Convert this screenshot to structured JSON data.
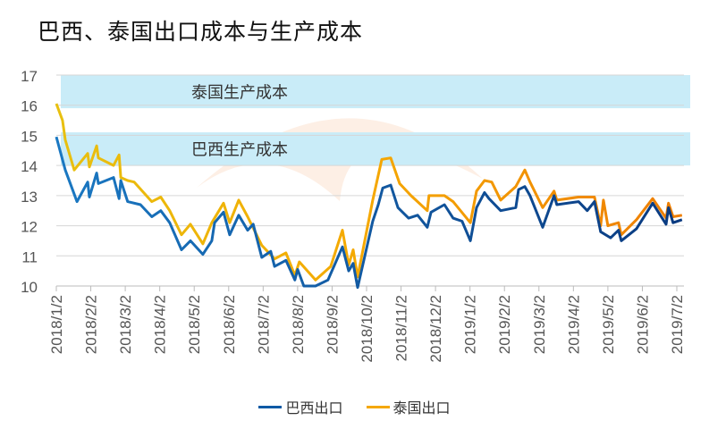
{
  "title": "巴西、泰国出口成本与生产成本",
  "chart_data": {
    "type": "line",
    "title": "巴西、泰国出口成本与生产成本",
    "xlabel": "",
    "ylabel": "",
    "ylim": [
      10,
      17
    ],
    "yticks": [
      "10",
      "11",
      "12",
      "13",
      "14",
      "15",
      "16",
      "17"
    ],
    "x_unit": "months since 2018/1/2",
    "xticks": [
      "2018/1/2",
      "2018/2/2",
      "2018/3/2",
      "2018/4/2",
      "2018/5/2",
      "2018/6/2",
      "2018/7/2",
      "2018/8/2",
      "2018/9/2",
      "2018/10/2",
      "2018/11/2",
      "2018/12/2",
      "2019/1/2",
      "2019/2/2",
      "2019/3/2",
      "2019/4/2",
      "2019/5/2",
      "2019/6/2",
      "2019/7/2"
    ],
    "grid": true,
    "legend_position": "bottom",
    "bands": [
      {
        "label": "泰国生产成本",
        "range": [
          15.9,
          17
        ]
      },
      {
        "label": "巴西生产成本",
        "range": [
          14,
          15.1
        ]
      }
    ],
    "series": [
      {
        "name": "巴西出口",
        "color": "#0a5aa5",
        "points": [
          [
            0,
            14.95
          ],
          [
            0.26,
            13.85
          ],
          [
            0.52,
            13.05
          ],
          [
            0.6,
            12.8
          ],
          [
            0.91,
            13.45
          ],
          [
            0.96,
            12.95
          ],
          [
            1.17,
            13.75
          ],
          [
            1.22,
            13.4
          ],
          [
            1.66,
            13.6
          ],
          [
            1.82,
            12.9
          ],
          [
            1.87,
            13.5
          ],
          [
            2.07,
            12.8
          ],
          [
            2.44,
            12.7
          ],
          [
            2.77,
            12.3
          ],
          [
            3.03,
            12.5
          ],
          [
            3.29,
            12.1
          ],
          [
            3.63,
            11.2
          ],
          [
            3.89,
            11.5
          ],
          [
            4.25,
            11.05
          ],
          [
            4.51,
            11.5
          ],
          [
            4.59,
            12.1
          ],
          [
            4.85,
            12.45
          ],
          [
            5.03,
            11.7
          ],
          [
            5.29,
            12.35
          ],
          [
            5.55,
            11.85
          ],
          [
            5.71,
            12.05
          ],
          [
            5.96,
            10.95
          ],
          [
            6.22,
            11.15
          ],
          [
            6.33,
            10.65
          ],
          [
            6.66,
            10.85
          ],
          [
            6.92,
            10.2
          ],
          [
            7.0,
            10.55
          ],
          [
            7.18,
            10.0
          ],
          [
            7.52,
            10.0
          ],
          [
            7.88,
            10.2
          ],
          [
            8.3,
            11.3
          ],
          [
            8.48,
            10.5
          ],
          [
            8.61,
            10.75
          ],
          [
            8.74,
            9.95
          ],
          [
            9.18,
            12.15
          ],
          [
            9.34,
            12.7
          ],
          [
            9.47,
            13.25
          ],
          [
            9.7,
            13.35
          ],
          [
            9.91,
            12.6
          ],
          [
            10.22,
            12.25
          ],
          [
            10.48,
            12.35
          ],
          [
            10.76,
            11.95
          ],
          [
            10.87,
            12.45
          ],
          [
            11.26,
            12.7
          ],
          [
            11.51,
            12.25
          ],
          [
            11.77,
            12.15
          ],
          [
            12.01,
            11.5
          ],
          [
            12.19,
            12.6
          ],
          [
            12.42,
            13.1
          ],
          [
            12.55,
            12.9
          ],
          [
            12.89,
            12.5
          ],
          [
            13.33,
            12.6
          ],
          [
            13.41,
            13.2
          ],
          [
            13.59,
            13.3
          ],
          [
            13.74,
            13.0
          ],
          [
            14.11,
            11.95
          ],
          [
            14.44,
            13.0
          ],
          [
            14.52,
            12.7
          ],
          [
            15.15,
            12.8
          ],
          [
            15.4,
            12.5
          ],
          [
            15.61,
            12.8
          ],
          [
            15.79,
            11.8
          ],
          [
            16.08,
            11.6
          ],
          [
            16.31,
            11.85
          ],
          [
            16.39,
            11.5
          ],
          [
            16.83,
            11.9
          ],
          [
            17.3,
            12.75
          ],
          [
            17.69,
            12.05
          ],
          [
            17.76,
            12.6
          ],
          [
            17.89,
            12.1
          ],
          [
            18.15,
            12.2
          ]
        ]
      },
      {
        "name": "泰国出口",
        "color": "#f5a800",
        "points": [
          [
            0,
            16.05
          ],
          [
            0.18,
            15.5
          ],
          [
            0.26,
            14.85
          ],
          [
            0.52,
            13.85
          ],
          [
            0.91,
            14.4
          ],
          [
            0.96,
            13.95
          ],
          [
            1.17,
            14.65
          ],
          [
            1.22,
            14.25
          ],
          [
            1.66,
            14.0
          ],
          [
            1.82,
            14.35
          ],
          [
            1.87,
            13.6
          ],
          [
            2.07,
            13.5
          ],
          [
            2.26,
            13.45
          ],
          [
            2.77,
            12.8
          ],
          [
            3.03,
            12.95
          ],
          [
            3.29,
            12.5
          ],
          [
            3.63,
            11.7
          ],
          [
            3.89,
            12.05
          ],
          [
            4.25,
            11.4
          ],
          [
            4.51,
            12.1
          ],
          [
            4.85,
            12.75
          ],
          [
            5.03,
            12.1
          ],
          [
            5.29,
            12.85
          ],
          [
            5.55,
            12.3
          ],
          [
            5.96,
            11.35
          ],
          [
            6.33,
            10.9
          ],
          [
            6.66,
            11.1
          ],
          [
            6.92,
            10.35
          ],
          [
            7.05,
            10.8
          ],
          [
            7.52,
            10.2
          ],
          [
            7.96,
            10.65
          ],
          [
            8.3,
            11.85
          ],
          [
            8.48,
            10.7
          ],
          [
            8.61,
            11.2
          ],
          [
            8.74,
            10.3
          ],
          [
            9.18,
            12.85
          ],
          [
            9.44,
            14.2
          ],
          [
            9.7,
            14.25
          ],
          [
            9.96,
            13.4
          ],
          [
            10.29,
            13.0
          ],
          [
            10.76,
            12.5
          ],
          [
            10.81,
            13.0
          ],
          [
            11.26,
            13.0
          ],
          [
            11.51,
            12.8
          ],
          [
            12.01,
            12.1
          ],
          [
            12.19,
            13.15
          ],
          [
            12.42,
            13.5
          ],
          [
            12.63,
            13.45
          ],
          [
            12.89,
            12.85
          ],
          [
            13.33,
            13.3
          ],
          [
            13.59,
            13.85
          ],
          [
            13.74,
            13.45
          ],
          [
            14.11,
            12.6
          ],
          [
            14.44,
            13.15
          ],
          [
            14.52,
            12.85
          ],
          [
            15.15,
            12.95
          ],
          [
            15.61,
            12.95
          ],
          [
            15.79,
            12.0
          ],
          [
            15.87,
            12.85
          ],
          [
            16.0,
            12.0
          ],
          [
            16.31,
            12.1
          ],
          [
            16.39,
            11.7
          ],
          [
            16.83,
            12.2
          ],
          [
            17.3,
            12.9
          ],
          [
            17.69,
            12.25
          ],
          [
            17.76,
            12.75
          ],
          [
            17.89,
            12.3
          ],
          [
            18.15,
            12.35
          ]
        ]
      }
    ]
  }
}
